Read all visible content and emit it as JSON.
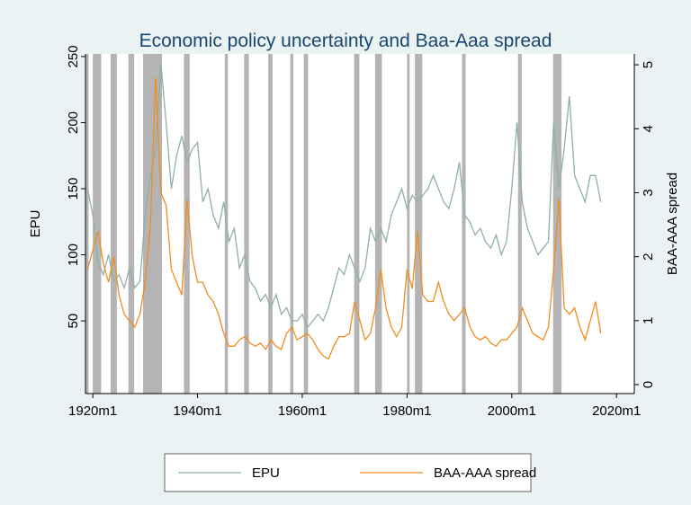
{
  "chart_data": {
    "type": "line",
    "title": "Economic policy uncertainty and Baa-Aaa spread",
    "ylabel": "EPU",
    "y2label": "BAA-AAA spread",
    "x": [
      1919,
      1920,
      1921,
      1922,
      1923,
      1924,
      1925,
      1926,
      1927,
      1928,
      1929,
      1930,
      1931,
      1932,
      1933,
      1934,
      1935,
      1936,
      1937,
      1938,
      1939,
      1940,
      1941,
      1942,
      1943,
      1944,
      1945,
      1946,
      1947,
      1948,
      1949,
      1950,
      1951,
      1952,
      1953,
      1954,
      1955,
      1956,
      1957,
      1958,
      1959,
      1960,
      1961,
      1962,
      1963,
      1964,
      1965,
      1966,
      1967,
      1968,
      1969,
      1970,
      1971,
      1972,
      1973,
      1974,
      1975,
      1976,
      1977,
      1978,
      1979,
      1980,
      1981,
      1982,
      1983,
      1984,
      1985,
      1986,
      1987,
      1988,
      1989,
      1990,
      1991,
      1992,
      1993,
      1994,
      1995,
      1996,
      1997,
      1998,
      1999,
      2000,
      2001,
      2002,
      2003,
      2004,
      2005,
      2006,
      2007,
      2008,
      2009,
      2010,
      2011,
      2012,
      2013,
      2014,
      2015,
      2016,
      2017
    ],
    "series": [
      {
        "name": "EPU",
        "color": "#8fb0a8",
        "axis": "y",
        "values": [
          150,
          130,
          95,
          85,
          100,
          80,
          85,
          75,
          90,
          75,
          80,
          130,
          160,
          180,
          245,
          200,
          150,
          175,
          190,
          170,
          180,
          185,
          140,
          150,
          130,
          120,
          140,
          110,
          120,
          90,
          100,
          80,
          75,
          65,
          70,
          60,
          70,
          55,
          60,
          50,
          50,
          55,
          45,
          50,
          55,
          50,
          60,
          75,
          90,
          85,
          100,
          90,
          80,
          90,
          120,
          110,
          120,
          110,
          130,
          140,
          150,
          135,
          145,
          140,
          145,
          150,
          160,
          150,
          140,
          135,
          150,
          170,
          130,
          125,
          115,
          120,
          110,
          105,
          115,
          100,
          110,
          150,
          200,
          140,
          120,
          110,
          100,
          105,
          110,
          200,
          150,
          180,
          220,
          160,
          150,
          140,
          160,
          160,
          140
        ]
      },
      {
        "name": "BAA-AAA spread",
        "color": "#f28c1e",
        "axis": "y2",
        "values": [
          1.8,
          2.1,
          2.4,
          1.9,
          1.6,
          2.0,
          1.4,
          1.1,
          1.0,
          0.9,
          1.1,
          1.6,
          2.5,
          4.8,
          3.0,
          2.8,
          1.8,
          1.6,
          1.4,
          2.9,
          2.0,
          1.6,
          1.6,
          1.4,
          1.3,
          1.1,
          0.8,
          0.6,
          0.6,
          0.7,
          0.75,
          0.65,
          0.6,
          0.65,
          0.55,
          0.7,
          0.6,
          0.55,
          0.8,
          0.9,
          0.7,
          0.75,
          0.8,
          0.7,
          0.55,
          0.45,
          0.4,
          0.6,
          0.75,
          0.75,
          0.8,
          1.3,
          1.0,
          0.7,
          0.8,
          1.2,
          1.8,
          1.2,
          0.9,
          0.75,
          0.9,
          1.8,
          1.5,
          2.4,
          1.4,
          1.3,
          1.3,
          1.6,
          1.3,
          1.1,
          1.0,
          1.1,
          1.2,
          0.9,
          0.75,
          0.7,
          0.75,
          0.65,
          0.6,
          0.7,
          0.7,
          0.8,
          0.9,
          1.2,
          1.0,
          0.8,
          0.75,
          0.7,
          0.9,
          1.8,
          2.9,
          1.2,
          1.1,
          1.2,
          0.9,
          0.7,
          1.0,
          1.3,
          0.8
        ]
      }
    ],
    "recessions": [
      [
        1918.7,
        1919.2
      ],
      [
        1920.0,
        1921.6
      ],
      [
        1923.4,
        1924.6
      ],
      [
        1926.8,
        1927.9
      ],
      [
        1929.6,
        1933.2
      ],
      [
        1937.4,
        1938.5
      ],
      [
        1945.2,
        1945.8
      ],
      [
        1948.9,
        1949.8
      ],
      [
        1953.5,
        1954.3
      ],
      [
        1957.7,
        1958.3
      ],
      [
        1960.3,
        1961.1
      ],
      [
        1969.9,
        1970.9
      ],
      [
        1973.9,
        1975.2
      ],
      [
        1980.0,
        1980.5
      ],
      [
        1981.5,
        1982.9
      ],
      [
        1990.5,
        1991.2
      ],
      [
        2001.2,
        2001.9
      ],
      [
        2007.9,
        2009.5
      ]
    ],
    "recession_color": "#b4b4b4",
    "xlim": [
      1918.6,
      2023.4
    ],
    "xticks": [
      {
        "value": 1920,
        "label": "1920m1"
      },
      {
        "value": 1940,
        "label": "1940m1"
      },
      {
        "value": 1960,
        "label": "1960m1"
      },
      {
        "value": 1980,
        "label": "1980m1"
      },
      {
        "value": 2000,
        "label": "2000m1"
      },
      {
        "value": 2020,
        "label": "2020m1"
      }
    ],
    "ylim": [
      -5,
      252
    ],
    "yticks": [
      50,
      100,
      150,
      200,
      250
    ],
    "y2lim": [
      -0.14,
      5.17
    ],
    "y2ticks": [
      0,
      1,
      2,
      3,
      4,
      5
    ],
    "legend": "bottom"
  }
}
